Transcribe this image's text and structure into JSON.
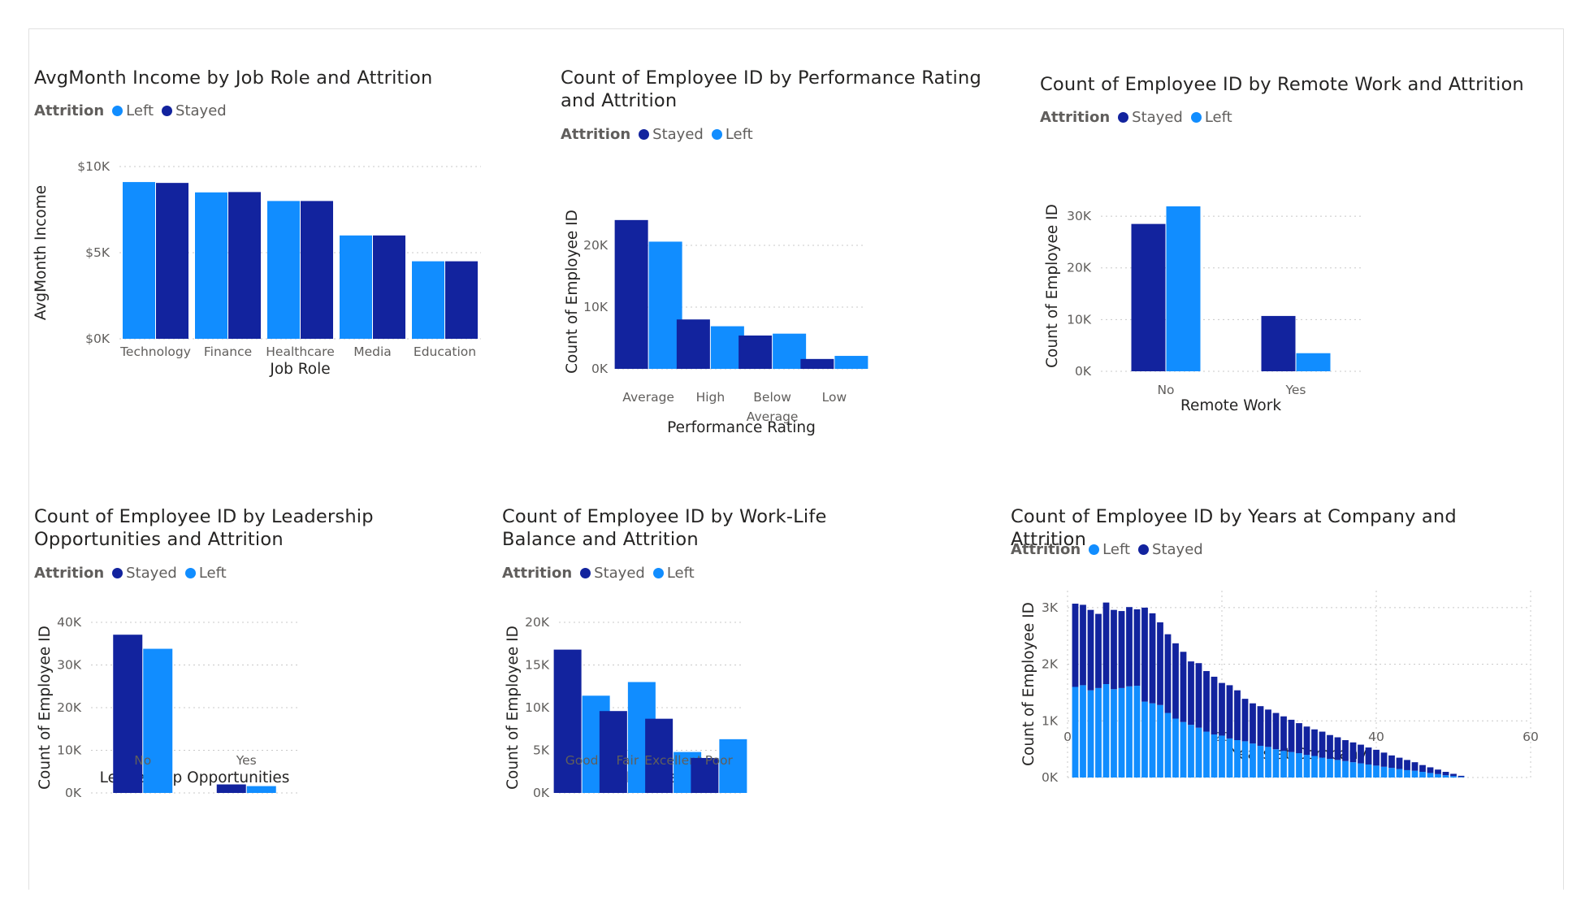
{
  "colors": {
    "left": "#118DFF",
    "stayed": "#12239E"
  },
  "chart_data": [
    {
      "id": "c1",
      "type": "bar",
      "title": "AvgMonth Income by Job Role and Attrition",
      "legend_title": "Attrition",
      "legend": [
        "Left",
        "Stayed"
      ],
      "xlabel": "Job Role",
      "ylabel": "AvgMonth Income",
      "categories": [
        "Technology",
        "Finance",
        "Healthcare",
        "Media",
        "Education"
      ],
      "series": [
        {
          "name": "Left",
          "color": "left",
          "values": [
            9100,
            8500,
            8000,
            6000,
            4500
          ]
        },
        {
          "name": "Stayed",
          "color": "stayed",
          "values": [
            9050,
            8520,
            8000,
            6000,
            4500
          ]
        }
      ],
      "ylim": [
        0,
        10000
      ],
      "yticks": [
        0,
        5000,
        10000
      ],
      "ytick_labels": [
        "$0K",
        "$5K",
        "$10K"
      ],
      "grid": true
    },
    {
      "id": "c2",
      "type": "bar",
      "title": "Count of Employee ID by Performance Rating and Attrition",
      "legend_title": "Attrition",
      "legend": [
        "Stayed",
        "Left"
      ],
      "xlabel": "Performance Rating",
      "ylabel": "Count of Employee ID",
      "categories": [
        "Average",
        "High",
        "Below Average",
        "Low"
      ],
      "series": [
        {
          "name": "Stayed",
          "color": "stayed",
          "values": [
            24100,
            8000,
            5400,
            1600
          ]
        },
        {
          "name": "Left",
          "color": "left",
          "values": [
            20600,
            6900,
            5700,
            2100
          ]
        }
      ],
      "ylim": [
        0,
        25000
      ],
      "yticks": [
        0,
        10000,
        20000
      ],
      "ytick_labels": [
        "0K",
        "10K",
        "20K"
      ],
      "grid": true
    },
    {
      "id": "c3",
      "type": "bar",
      "title": "Count of Employee ID by Remote Work and Attrition",
      "legend_title": "Attrition",
      "legend": [
        "Stayed",
        "Left"
      ],
      "xlabel": "Remote Work",
      "ylabel": "Count of Employee ID",
      "categories": [
        "No",
        "Yes"
      ],
      "series": [
        {
          "name": "Stayed",
          "color": "stayed",
          "values": [
            28500,
            10700
          ]
        },
        {
          "name": "Left",
          "color": "left",
          "values": [
            31900,
            3500
          ]
        }
      ],
      "ylim": [
        0,
        33000
      ],
      "yticks": [
        0,
        10000,
        20000,
        30000
      ],
      "ytick_labels": [
        "0K",
        "10K",
        "20K",
        "30K"
      ],
      "grid": true
    },
    {
      "id": "c4",
      "type": "bar",
      "title": "Count of Employee ID by Leadership Opportunities and Attrition",
      "legend_title": "Attrition",
      "legend": [
        "Stayed",
        "Left"
      ],
      "xlabel": "Leadership Opportunities",
      "ylabel": "Count of Employee ID",
      "categories": [
        "No",
        "Yes"
      ],
      "series": [
        {
          "name": "Stayed",
          "color": "stayed",
          "values": [
            37100,
            2000
          ]
        },
        {
          "name": "Left",
          "color": "left",
          "values": [
            33800,
            1600
          ]
        }
      ],
      "ylim": [
        0,
        40000
      ],
      "yticks": [
        0,
        10000,
        20000,
        30000,
        40000
      ],
      "ytick_labels": [
        "0K",
        "10K",
        "20K",
        "30K",
        "40K"
      ],
      "grid": true
    },
    {
      "id": "c5",
      "type": "bar",
      "title": "Count of Employee ID by Work-Life Balance and Attrition",
      "legend_title": "Attrition",
      "legend": [
        "Stayed",
        "Left"
      ],
      "xlabel": "Work-Life Balance",
      "ylabel": "Count of Employee ID",
      "categories": [
        "Good",
        "Fair",
        "Excellent",
        "Poor"
      ],
      "series": [
        {
          "name": "Stayed",
          "color": "stayed",
          "values": [
            16800,
            9600,
            8700,
            4100
          ]
        },
        {
          "name": "Left",
          "color": "left",
          "values": [
            11400,
            13000,
            4800,
            6300
          ]
        }
      ],
      "ylim": [
        0,
        20000
      ],
      "yticks": [
        0,
        5000,
        10000,
        15000,
        20000
      ],
      "ytick_labels": [
        "0K",
        "5K",
        "10K",
        "15K",
        "20K"
      ],
      "grid": true
    },
    {
      "id": "c6",
      "type": "bar",
      "stacked": true,
      "title": "Count of Employee ID by Years at Company and Attrition",
      "legend_title": "Attrition",
      "legend": [
        "Left",
        "Stayed"
      ],
      "xlabel": "Years at Company",
      "ylabel": "Count of Employee ID",
      "x": [
        1,
        2,
        3,
        4,
        5,
        6,
        7,
        8,
        9,
        10,
        11,
        12,
        13,
        14,
        15,
        16,
        17,
        18,
        19,
        20,
        21,
        22,
        23,
        24,
        25,
        26,
        27,
        28,
        29,
        30,
        31,
        32,
        33,
        34,
        35,
        36,
        37,
        38,
        39,
        40,
        41,
        42,
        43,
        44,
        45,
        46,
        47,
        48,
        49,
        50,
        51
      ],
      "series": [
        {
          "name": "Left",
          "color": "left",
          "values": [
            1600,
            1630,
            1540,
            1580,
            1650,
            1560,
            1580,
            1610,
            1620,
            1340,
            1310,
            1280,
            1140,
            1040,
            980,
            930,
            880,
            810,
            760,
            740,
            690,
            660,
            640,
            600,
            560,
            540,
            500,
            470,
            450,
            430,
            400,
            380,
            350,
            330,
            310,
            290,
            270,
            250,
            230,
            210,
            190,
            170,
            150,
            130,
            120,
            100,
            80,
            60,
            40,
            25,
            10
          ]
        },
        {
          "name": "Stayed",
          "color": "stayed",
          "values": [
            1470,
            1420,
            1420,
            1310,
            1440,
            1400,
            1360,
            1400,
            1350,
            1660,
            1590,
            1460,
            1390,
            1330,
            1240,
            1120,
            1140,
            1070,
            1020,
            930,
            940,
            880,
            750,
            710,
            700,
            660,
            640,
            610,
            570,
            530,
            500,
            470,
            460,
            420,
            400,
            370,
            350,
            330,
            300,
            280,
            250,
            220,
            200,
            180,
            150,
            120,
            100,
            80,
            60,
            40,
            20
          ]
        }
      ],
      "xlim": [
        0,
        60
      ],
      "ylim": [
        0,
        3300
      ],
      "xticks": [
        0,
        20,
        40,
        60
      ],
      "yticks": [
        0,
        1000,
        2000,
        3000
      ],
      "ytick_labels": [
        "0K",
        "1K",
        "2K",
        "3K"
      ],
      "grid": true
    }
  ]
}
